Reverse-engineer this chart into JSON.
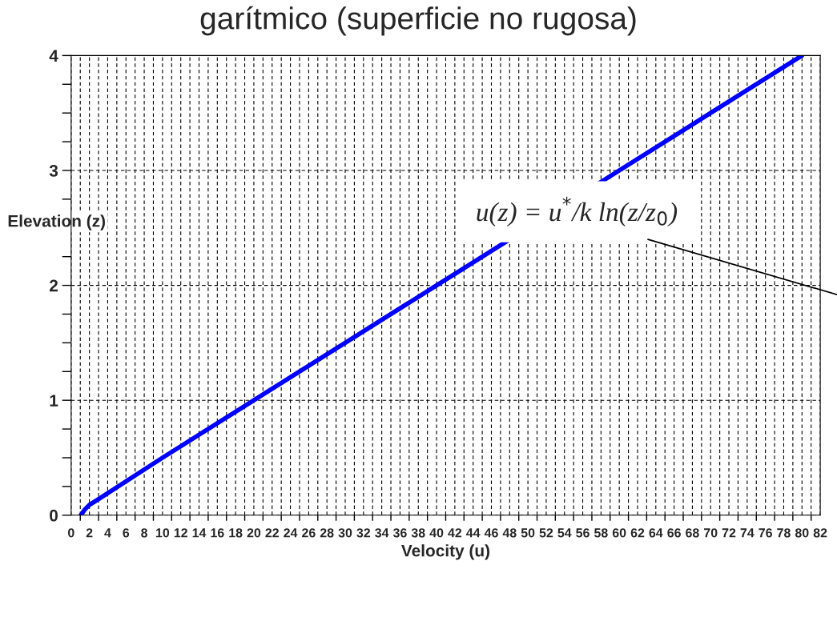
{
  "chart_data": {
    "type": "line",
    "title": "garítmico (superficie no rugosa)",
    "xlabel": "Velocity (u)",
    "ylabel": "Elevation (z)",
    "series": [
      {
        "color": "#0000ff",
        "x": [
          1.05,
          1.5,
          2.0,
          2.6,
          10,
          20,
          30,
          40,
          43,
          50,
          60,
          68,
          70,
          80
        ],
        "values": [
          0,
          0.05,
          0.09,
          0.12,
          0.5,
          1.0,
          1.5,
          2.0,
          2.15,
          null,
          null,
          3.4,
          3.5,
          4.0
        ]
      }
    ],
    "xlim": [
      0,
      82
    ],
    "ylim": [
      0,
      4
    ],
    "xticks": [
      0,
      {
        "value": 1,
        "label": null
      },
      2,
      {
        "value": 3,
        "label": null
      },
      4,
      {
        "value": 5,
        "label": null
      },
      6,
      {
        "value": 7,
        "label": null
      },
      8,
      {
        "value": 9,
        "label": null
      },
      10,
      {
        "value": 11,
        "label": null
      },
      12,
      {
        "value": 13,
        "label": null
      },
      14,
      {
        "value": 15,
        "label": null
      },
      16,
      {
        "value": 17,
        "label": null
      },
      18,
      {
        "value": 19,
        "label": null
      },
      20,
      {
        "value": 21,
        "label": null
      },
      22,
      {
        "value": 23,
        "label": null
      },
      24,
      {
        "value": 25,
        "label": null
      },
      26,
      {
        "value": 27,
        "label": null
      },
      28,
      {
        "value": 29,
        "label": null
      },
      30,
      {
        "value": 31,
        "label": null
      },
      32,
      {
        "value": 33,
        "label": null
      },
      34,
      {
        "value": 35,
        "label": null
      },
      36,
      {
        "value": 37,
        "label": null
      },
      38,
      {
        "value": 39,
        "label": null
      },
      40,
      {
        "value": 41,
        "label": null
      },
      42,
      {
        "value": 43,
        "label": null
      },
      44,
      {
        "value": 45,
        "label": null
      },
      46,
      {
        "value": 47,
        "label": null
      },
      48,
      {
        "value": 49,
        "label": null
      },
      50,
      {
        "value": 51,
        "label": null
      },
      52,
      {
        "value": 53,
        "label": null
      },
      54,
      {
        "value": 55,
        "label": null
      },
      56,
      {
        "value": 57,
        "label": null
      },
      58,
      {
        "value": 59,
        "label": null
      },
      60,
      {
        "value": 61,
        "label": null
      },
      62,
      {
        "value": 63,
        "label": null
      },
      64,
      {
        "value": 65,
        "label": null
      },
      66,
      {
        "value": 67,
        "label": null
      },
      68,
      {
        "value": 69,
        "label": null
      },
      70,
      {
        "value": 71,
        "label": null
      },
      72,
      {
        "value": 73,
        "label": null
      },
      74,
      {
        "value": 75,
        "label": null
      },
      76,
      {
        "value": 77,
        "label": null
      },
      78,
      {
        "value": 79,
        "label": null
      },
      80,
      {
        "value": 81,
        "label": null
      },
      82
    ],
    "yticks": [
      0,
      {
        "value": 0.25,
        "label": null
      },
      {
        "value": 0.5,
        "label": null
      },
      {
        "value": 0.75,
        "label": null
      },
      1,
      {
        "value": 1.25,
        "label": null
      },
      {
        "value": 1.5,
        "label": null
      },
      {
        "value": 1.75,
        "label": null
      },
      2,
      {
        "value": 2.25,
        "label": null
      },
      {
        "value": 2.5,
        "label": null
      },
      {
        "value": 2.75,
        "label": null
      },
      3,
      {
        "value": 3.25,
        "label": null
      },
      {
        "value": 3.5,
        "label": null
      },
      {
        "value": 3.75,
        "label": null
      },
      4
    ],
    "grid": true,
    "marker": "none",
    "line_style": "solid",
    "legend": false,
    "annotations": [
      "u(z) = u$^{*}$/k ln(z/z$_{0}$)"
    ]
  }
}
